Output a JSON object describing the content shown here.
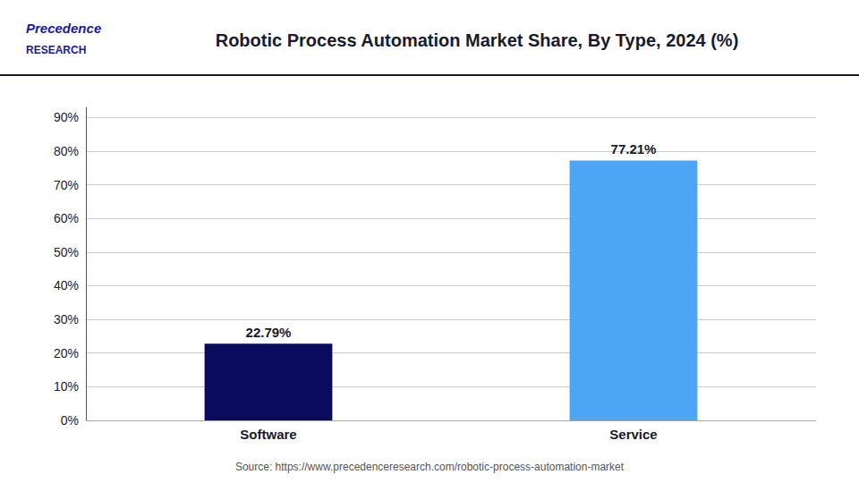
{
  "chart_data": {
    "type": "bar",
    "title": "Robotic Process Automation Market Share, By Type, 2024 (%)",
    "categories": [
      "Software",
      "Service"
    ],
    "values": [
      22.79,
      77.21
    ],
    "value_labels": [
      "22.79%",
      "77.21%"
    ],
    "data_labels": true,
    "colors": [
      "#0a0a5e",
      "#4da6f5"
    ],
    "ylim": [
      0,
      93
    ],
    "yticks": [
      {
        "value": 0,
        "label": "0%"
      },
      {
        "value": 10,
        "label": "10%"
      },
      {
        "value": 20,
        "label": "20%"
      },
      {
        "value": 30,
        "label": "30%"
      },
      {
        "value": 40,
        "label": "40%"
      },
      {
        "value": 50,
        "label": "50%"
      },
      {
        "value": 60,
        "label": "60%"
      },
      {
        "value": 70,
        "label": "70%"
      },
      {
        "value": 80,
        "label": "80%"
      },
      {
        "value": 90,
        "label": "90%"
      }
    ],
    "grid": true,
    "annotations": [
      "Precedence",
      "RESEARCH",
      "Source: https://www.precedenceresearch.com/robotic-process-automation-market"
    ]
  }
}
